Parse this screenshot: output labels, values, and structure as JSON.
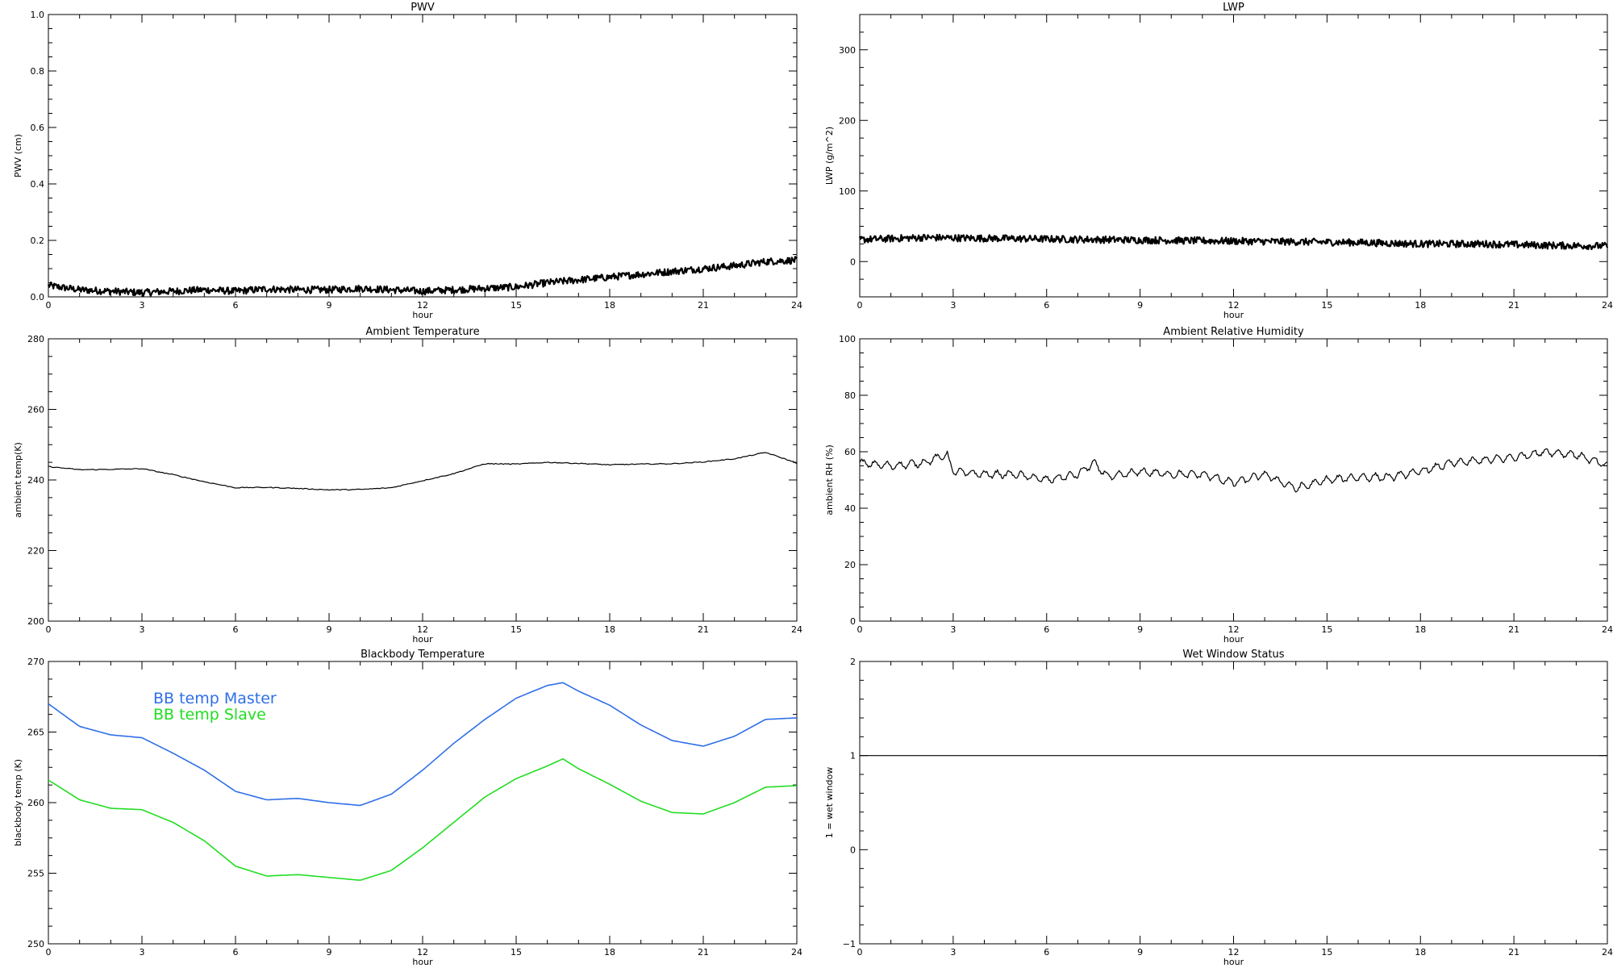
{
  "colors": {
    "axes": "#000000",
    "background": "#ffffff",
    "master": "#2f6fe8",
    "slave": "#22dd22"
  },
  "x_ticks": [
    "0",
    "3",
    "6",
    "9",
    "12",
    "15",
    "18",
    "21",
    "24"
  ],
  "chart_data": [
    {
      "id": "pwv",
      "type": "line",
      "title": "PWV",
      "xlabel": "hour",
      "ylabel": "PWV (cm)",
      "xlim": [
        0,
        24
      ],
      "ylim": [
        0,
        1.0
      ],
      "yticks": [
        "0.0",
        "0.2",
        "0.4",
        "0.6",
        "0.8",
        "1.0"
      ],
      "yticks_val": [
        0,
        0.2,
        0.4,
        0.6,
        0.8,
        1.0
      ],
      "line_style": "noisy-thick",
      "series": [
        {
          "x": [
            0,
            1,
            2,
            3,
            4,
            5,
            6,
            7,
            8,
            9,
            10,
            11,
            12,
            13,
            14,
            15,
            16,
            17,
            18,
            19,
            20,
            21,
            22,
            23,
            24
          ],
          "values": [
            0.04,
            0.025,
            0.02,
            0.015,
            0.02,
            0.025,
            0.02,
            0.028,
            0.025,
            0.025,
            0.03,
            0.025,
            0.02,
            0.025,
            0.03,
            0.035,
            0.05,
            0.06,
            0.07,
            0.08,
            0.09,
            0.1,
            0.11,
            0.125,
            0.13
          ]
        }
      ]
    },
    {
      "id": "lwp",
      "type": "line",
      "title": "LWP",
      "xlabel": "hour",
      "ylabel": "LWP (g/m^2)",
      "xlim": [
        0,
        24
      ],
      "ylim": [
        -50,
        350
      ],
      "yticks": [
        "0",
        "100",
        "200",
        "300"
      ],
      "yticks_val": [
        0,
        100,
        200,
        300
      ],
      "line_style": "noisy-thick",
      "series": [
        {
          "x": [
            0,
            2,
            4,
            6,
            8,
            10,
            12,
            14,
            16,
            18,
            20,
            22,
            24
          ],
          "values": [
            31,
            34,
            33,
            32,
            31,
            30,
            29,
            28,
            27,
            25,
            25,
            23,
            22
          ]
        }
      ]
    },
    {
      "id": "temp",
      "type": "line",
      "title": "Ambient Temperature",
      "xlabel": "hour",
      "ylabel": "ambient temp(K)",
      "xlim": [
        0,
        24
      ],
      "ylim": [
        200,
        280
      ],
      "yticks": [
        "200",
        "220",
        "240",
        "260",
        "280"
      ],
      "yticks_val": [
        200,
        220,
        240,
        260,
        280
      ],
      "line_style": "thin",
      "series": [
        {
          "x": [
            0,
            1,
            2,
            3,
            4,
            5,
            6,
            7,
            8,
            9,
            10,
            11,
            12,
            13,
            14,
            15,
            16,
            17,
            18,
            19,
            20,
            21,
            22,
            23,
            24
          ],
          "values": [
            243.8,
            242.9,
            243.0,
            243.2,
            241.5,
            239.5,
            237.8,
            237.9,
            237.6,
            237.2,
            237.3,
            237.8,
            239.8,
            241.8,
            244.6,
            244.5,
            245.0,
            244.7,
            244.3,
            244.5,
            244.6,
            245.1,
            246.0,
            247.8,
            244.8
          ]
        }
      ]
    },
    {
      "id": "rh",
      "type": "line",
      "title": "Ambient Relative Humidity",
      "xlabel": "hour",
      "ylabel": "ambient RH (%)",
      "xlim": [
        0,
        24
      ],
      "ylim": [
        0,
        100
      ],
      "yticks": [
        "0",
        "20",
        "40",
        "60",
        "80",
        "100"
      ],
      "yticks_val": [
        0,
        20,
        40,
        60,
        80,
        100
      ],
      "line_style": "wiggly",
      "series": [
        {
          "x": [
            0,
            1,
            2,
            2.8,
            3,
            4,
            5,
            6,
            7,
            7.5,
            8,
            9,
            10,
            11,
            12,
            13,
            14,
            15,
            16,
            17,
            18,
            19,
            20,
            21,
            22,
            23,
            24
          ],
          "values": [
            56,
            55,
            56,
            59,
            53,
            52,
            52,
            50,
            52,
            56,
            51,
            53,
            52,
            52,
            49,
            52,
            47,
            50,
            51,
            51,
            53,
            56,
            57,
            58,
            60,
            59,
            55
          ]
        }
      ]
    },
    {
      "id": "bb",
      "type": "line",
      "title": "Blackbody Temperature",
      "xlabel": "hour",
      "ylabel": "blackbody temp (K)",
      "xlim": [
        0,
        24
      ],
      "ylim": [
        250,
        270
      ],
      "yticks": [
        "250",
        "255",
        "260",
        "265",
        "270"
      ],
      "yticks_val": [
        250,
        255,
        260,
        265,
        270
      ],
      "line_style": "smooth",
      "series": [
        {
          "name": "BB temp Master",
          "color": "#2f6fe8",
          "x": [
            0,
            1,
            2,
            3,
            4,
            5,
            6,
            7,
            8,
            9,
            10,
            11,
            12,
            13,
            14,
            15,
            16,
            16.5,
            17,
            18,
            19,
            20,
            21,
            22,
            23,
            24
          ],
          "values": [
            267.0,
            265.4,
            264.8,
            264.6,
            263.5,
            262.3,
            260.8,
            260.2,
            260.3,
            260.0,
            259.8,
            260.6,
            262.3,
            264.2,
            265.9,
            267.4,
            268.3,
            268.5,
            267.9,
            266.9,
            265.5,
            264.4,
            264.0,
            264.7,
            265.9,
            266.0
          ]
        },
        {
          "name": "BB temp Slave",
          "color": "#22dd22",
          "x": [
            0,
            1,
            2,
            3,
            4,
            5,
            6,
            7,
            8,
            9,
            10,
            11,
            12,
            13,
            14,
            15,
            16,
            16.5,
            17,
            18,
            19,
            20,
            21,
            22,
            23,
            24
          ],
          "values": [
            261.6,
            260.2,
            259.6,
            259.5,
            258.6,
            257.3,
            255.5,
            254.8,
            254.9,
            254.7,
            254.5,
            255.2,
            256.8,
            258.6,
            260.4,
            261.7,
            262.6,
            263.1,
            262.4,
            261.3,
            260.1,
            259.3,
            259.2,
            260.0,
            261.1,
            261.2
          ]
        }
      ]
    },
    {
      "id": "wet",
      "type": "line",
      "title": "Wet Window Status",
      "xlabel": "hour",
      "ylabel": "1 = wet window",
      "xlim": [
        0,
        24
      ],
      "ylim": [
        -1,
        2
      ],
      "yticks": [
        "−1",
        "0",
        "1",
        "2"
      ],
      "yticks_val": [
        -1,
        0,
        1,
        2
      ],
      "line_style": "flat",
      "series": [
        {
          "x": [
            0,
            24
          ],
          "values": [
            1,
            1
          ]
        }
      ]
    }
  ]
}
